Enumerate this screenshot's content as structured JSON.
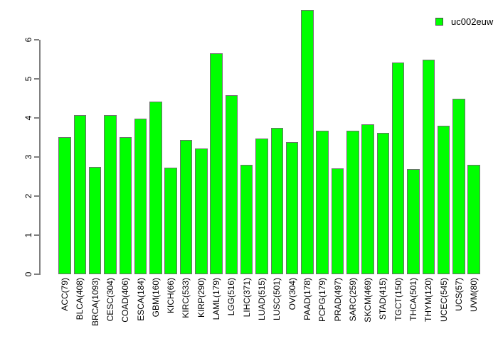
{
  "chart_data": {
    "type": "bar",
    "title": "",
    "xlabel": "",
    "ylabel": "",
    "categories": [
      "ACC(79)",
      "BLCA(408)",
      "BRCA(1093)",
      "CESC(304)",
      "COAD(406)",
      "ESCA(184)",
      "GBM(160)",
      "KICH(66)",
      "KIRC(533)",
      "KIRP(290)",
      "LAML(179)",
      "LGG(516)",
      "LIHC(371)",
      "LUAD(515)",
      "LUSC(501)",
      "OV(304)",
      "PAAD(178)",
      "PCPG(179)",
      "PRAD(497)",
      "SARC(259)",
      "SKCM(469)",
      "STAD(415)",
      "TGCT(150)",
      "THCA(501)",
      "THYM(120)",
      "UCEC(545)",
      "UCS(57)",
      "UVM(80)"
    ],
    "values": [
      3.51,
      4.07,
      2.74,
      4.08,
      3.51,
      3.99,
      4.42,
      2.73,
      3.43,
      3.21,
      5.65,
      4.59,
      2.79,
      3.48,
      3.74,
      3.38,
      6.76,
      3.67,
      2.7,
      3.67,
      3.84,
      3.62,
      5.42,
      2.69,
      5.5,
      3.8,
      4.5,
      2.79
    ],
    "y_ticks": [
      0,
      1,
      2,
      3,
      4,
      5,
      6
    ],
    "ylim": [
      0,
      6.8
    ],
    "grid": false,
    "legend": {
      "label": "uc002euw",
      "position": "topright"
    },
    "colors": {
      "bar_fill": "#00ff00",
      "bar_border": "#6e6e6e",
      "axis": "#808080",
      "text": "#000000",
      "background": "#ffffff"
    }
  }
}
